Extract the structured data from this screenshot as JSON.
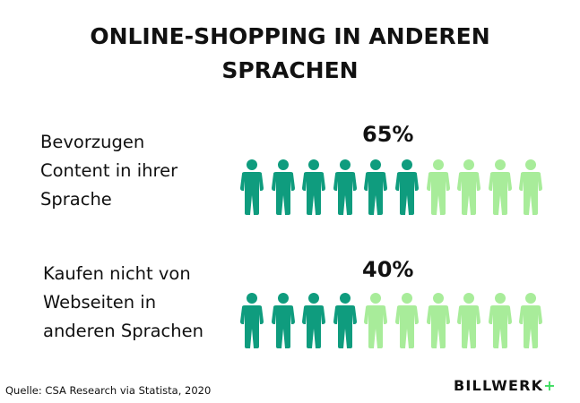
{
  "title": {
    "line1": "ONLINE-SHOPPING IN ANDEREN",
    "line2": "SPRACHEN"
  },
  "chart_data": {
    "type": "pictograph",
    "units_per_row": 10,
    "colors": {
      "filled": "#0f9c7e",
      "empty": "#a8ec9a",
      "text": "#111111",
      "brand_plus": "#3ddc60"
    },
    "rows": [
      {
        "label_lines": [
          "Bevorzugen",
          "Content in ihrer",
          "Sprache"
        ],
        "value_label": "65%",
        "value": 65,
        "filled_icons": 6
      },
      {
        "label_lines": [
          "Kaufen nicht von",
          "Webseiten in",
          "anderen Sprachen"
        ],
        "value_label": "40%",
        "value": 40,
        "filled_icons": 4
      }
    ]
  },
  "footer": {
    "source": "Quelle: CSA Research via Statista, 2020",
    "brand_text": "BILLWERK",
    "brand_plus": "+"
  }
}
